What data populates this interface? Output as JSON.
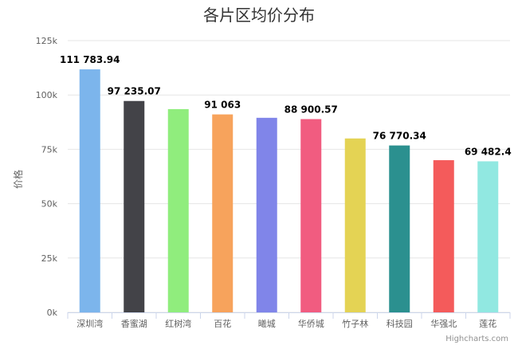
{
  "chart_data": {
    "type": "bar",
    "title": "各片区均价分布",
    "ylabel": "价格",
    "xlabel": "",
    "ylim": [
      0,
      125000
    ],
    "yticks": [
      {
        "value": 0,
        "label": "0k"
      },
      {
        "value": 25000,
        "label": "25k"
      },
      {
        "value": 50000,
        "label": "50k"
      },
      {
        "value": 75000,
        "label": "75k"
      },
      {
        "value": 100000,
        "label": "100k"
      },
      {
        "value": 125000,
        "label": "125k"
      }
    ],
    "categories": [
      "深圳湾",
      "香蜜湖",
      "红树湾",
      "百花",
      "曦城",
      "华侨城",
      "竹子林",
      "科技园",
      "华强北",
      "莲花"
    ],
    "values": [
      111783.94,
      97235.07,
      93500,
      91063,
      89500,
      88900.57,
      80000,
      76770.34,
      70000,
      69482.4
    ],
    "data_labels": [
      "111 783.94",
      "97 235.07",
      "",
      "91 063",
      "",
      "88 900.57",
      "",
      "76 770.34",
      "",
      "69 482.4"
    ],
    "colors": [
      "#7cb5ec",
      "#434348",
      "#90ed7d",
      "#f7a35c",
      "#8085e9",
      "#f15c80",
      "#e4d354",
      "#2b908f",
      "#f45b5b",
      "#91e8e1"
    ],
    "grid": true,
    "credits": "Highcharts.com"
  }
}
